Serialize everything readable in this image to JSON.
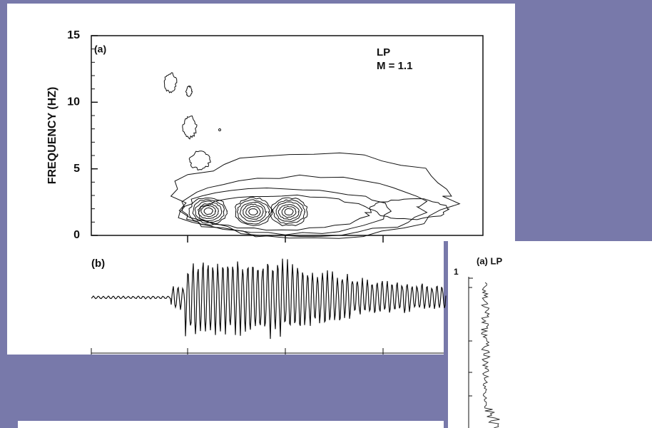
{
  "chart_data": [
    {
      "type": "contour",
      "panel_label": "(a)",
      "annotations": [
        "LP",
        "M = 1.1"
      ],
      "y_label": "FREQUENCY (HZ)",
      "ylim": [
        0,
        15
      ],
      "yticks": [
        0,
        5,
        10,
        15
      ]
    },
    {
      "type": "waveform",
      "panel_label": "(b)"
    },
    {
      "type": "spectrum",
      "title": "(a) LP",
      "yticks": [
        1
      ]
    }
  ]
}
